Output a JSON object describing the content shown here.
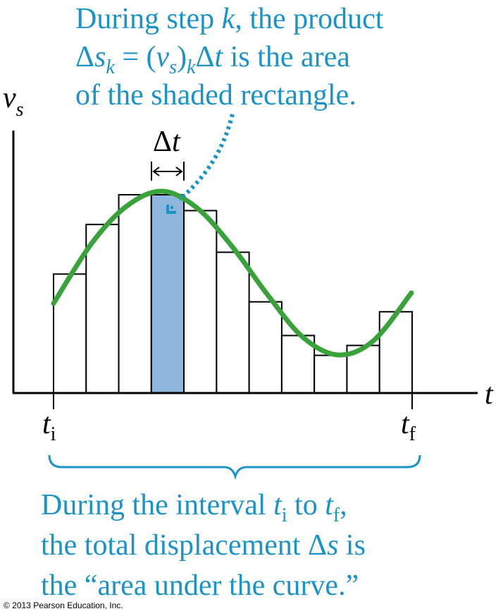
{
  "colors": {
    "accent_text": "#1a93c9",
    "curve": "#3aa23a",
    "shaded_rect": "#8fb7de",
    "outline": "#000000"
  },
  "top_caption": {
    "line1_a": "During step ",
    "line1_k": "k",
    "line1_b": ", the product",
    "line2_delta": "Δ",
    "line2_s": "s",
    "line2_k": "k",
    "line2_eq": " = (",
    "line2_v": "v",
    "line2_vs": "s",
    "line2_close": ")",
    "line2_k2": "k",
    "line2_delta2": "Δ",
    "line2_t": "t",
    "line2_tail": " is the area",
    "line3": "of the shaded rectangle."
  },
  "axes": {
    "y_label_v": "v",
    "y_label_sub": "s",
    "x_label": "t"
  },
  "delta_t_label": {
    "delta": "Δ",
    "t": "t"
  },
  "ticks": {
    "ti_t": "t",
    "ti_sub": "i",
    "tf_t": "t",
    "tf_sub": "f"
  },
  "bottom_caption": {
    "line1_a": "During the interval ",
    "line1_t1": "t",
    "line1_i": "i",
    "line1_to": " to ",
    "line1_t2": "t",
    "line1_f": "f",
    "line1_comma": ",",
    "line2_a": "the total displacement ",
    "line2_delta": "Δ",
    "line2_s": "s",
    "line2_tail": " is",
    "line3": "the “area under the curve.”"
  },
  "copyright": "© 2013 Pearson Education, Inc.",
  "chart_data": {
    "type": "bar",
    "shaded_index": 3,
    "values": [
      0.6,
      0.85,
      1.0,
      1.0,
      0.92,
      0.71,
      0.46,
      0.29,
      0.19,
      0.24,
      0.41
    ]
  }
}
